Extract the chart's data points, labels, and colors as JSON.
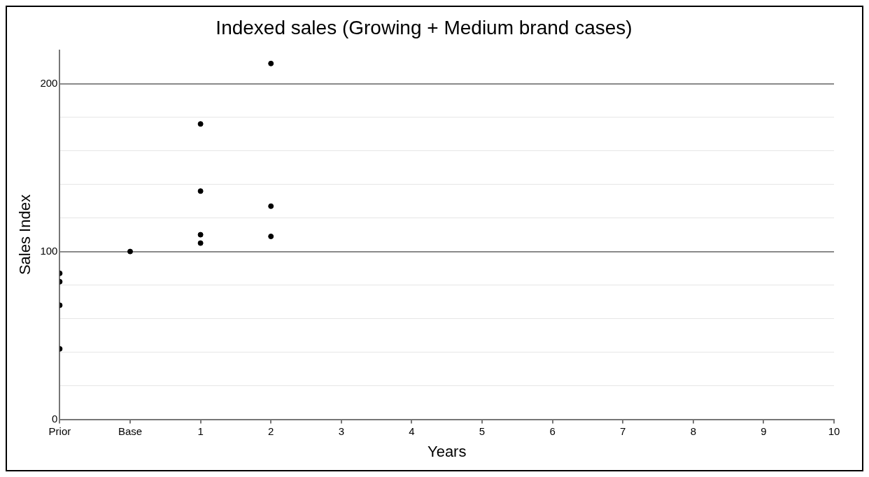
{
  "chart_data": {
    "type": "scatter",
    "title": "Indexed sales (Growing + Medium brand cases)",
    "xlabel": "Years",
    "ylabel": "Sales Index",
    "xlim": [
      -1,
      10
    ],
    "xticks": [
      {
        "value": -1,
        "label": "Prior"
      },
      {
        "value": 0,
        "label": "Base"
      },
      1,
      2,
      3,
      4,
      5,
      6,
      7,
      8,
      9,
      10
    ],
    "ylim": [
      0,
      220
    ],
    "yticks": [
      0,
      {
        "value": 20,
        "label": null
      },
      {
        "value": 40,
        "label": null
      },
      {
        "value": 60,
        "label": null
      },
      {
        "value": 80,
        "label": null
      },
      100,
      {
        "value": 120,
        "label": null
      },
      {
        "value": 140,
        "label": null
      },
      {
        "value": 160,
        "label": null
      },
      {
        "value": 180,
        "label": null
      },
      200
    ],
    "grid": "y",
    "legend": false,
    "marker": "circle",
    "series": [
      {
        "color": "#000000",
        "x": [
          -1,
          -1,
          -1,
          -1,
          0,
          1,
          1,
          1,
          1,
          2,
          2,
          2
        ],
        "values": [
          87,
          82,
          68,
          42,
          100,
          176,
          136,
          110,
          105,
          212,
          127,
          109
        ]
      }
    ]
  }
}
